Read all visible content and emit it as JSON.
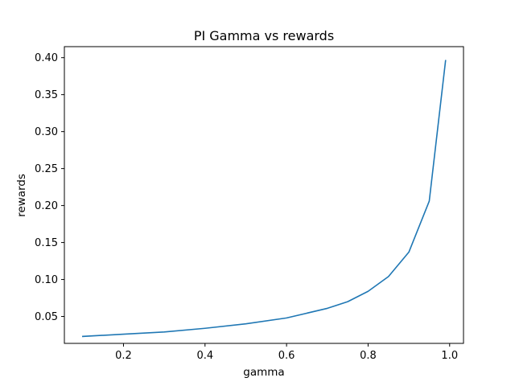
{
  "chart_data": {
    "type": "line",
    "title": "PI Gamma vs rewards",
    "xlabel": "gamma",
    "ylabel": "rewards",
    "xlim": [
      0.055,
      1.034
    ],
    "ylim": [
      0.0136,
      0.4149
    ],
    "x_ticks": [
      0.2,
      0.4,
      0.6,
      0.8,
      1.0
    ],
    "x_tick_labels": [
      "0.2",
      "0.4",
      "0.6",
      "0.8",
      "1.0"
    ],
    "y_ticks": [
      0.05,
      0.1,
      0.15,
      0.2,
      0.25,
      0.3,
      0.35,
      0.4
    ],
    "y_tick_labels": [
      "0.05",
      "0.10",
      "0.15",
      "0.20",
      "0.25",
      "0.30",
      "0.35",
      "0.40"
    ],
    "grid": false,
    "legend": "none",
    "series": [
      {
        "color": "#1f77b4",
        "x": [
          0.1,
          0.2,
          0.3,
          0.4,
          0.5,
          0.6,
          0.7,
          0.75,
          0.8,
          0.85,
          0.9,
          0.95,
          0.99
        ],
        "y": [
          0.023,
          0.026,
          0.029,
          0.034,
          0.04,
          0.048,
          0.061,
          0.07,
          0.084,
          0.104,
          0.137,
          0.206,
          0.396
        ]
      }
    ]
  }
}
